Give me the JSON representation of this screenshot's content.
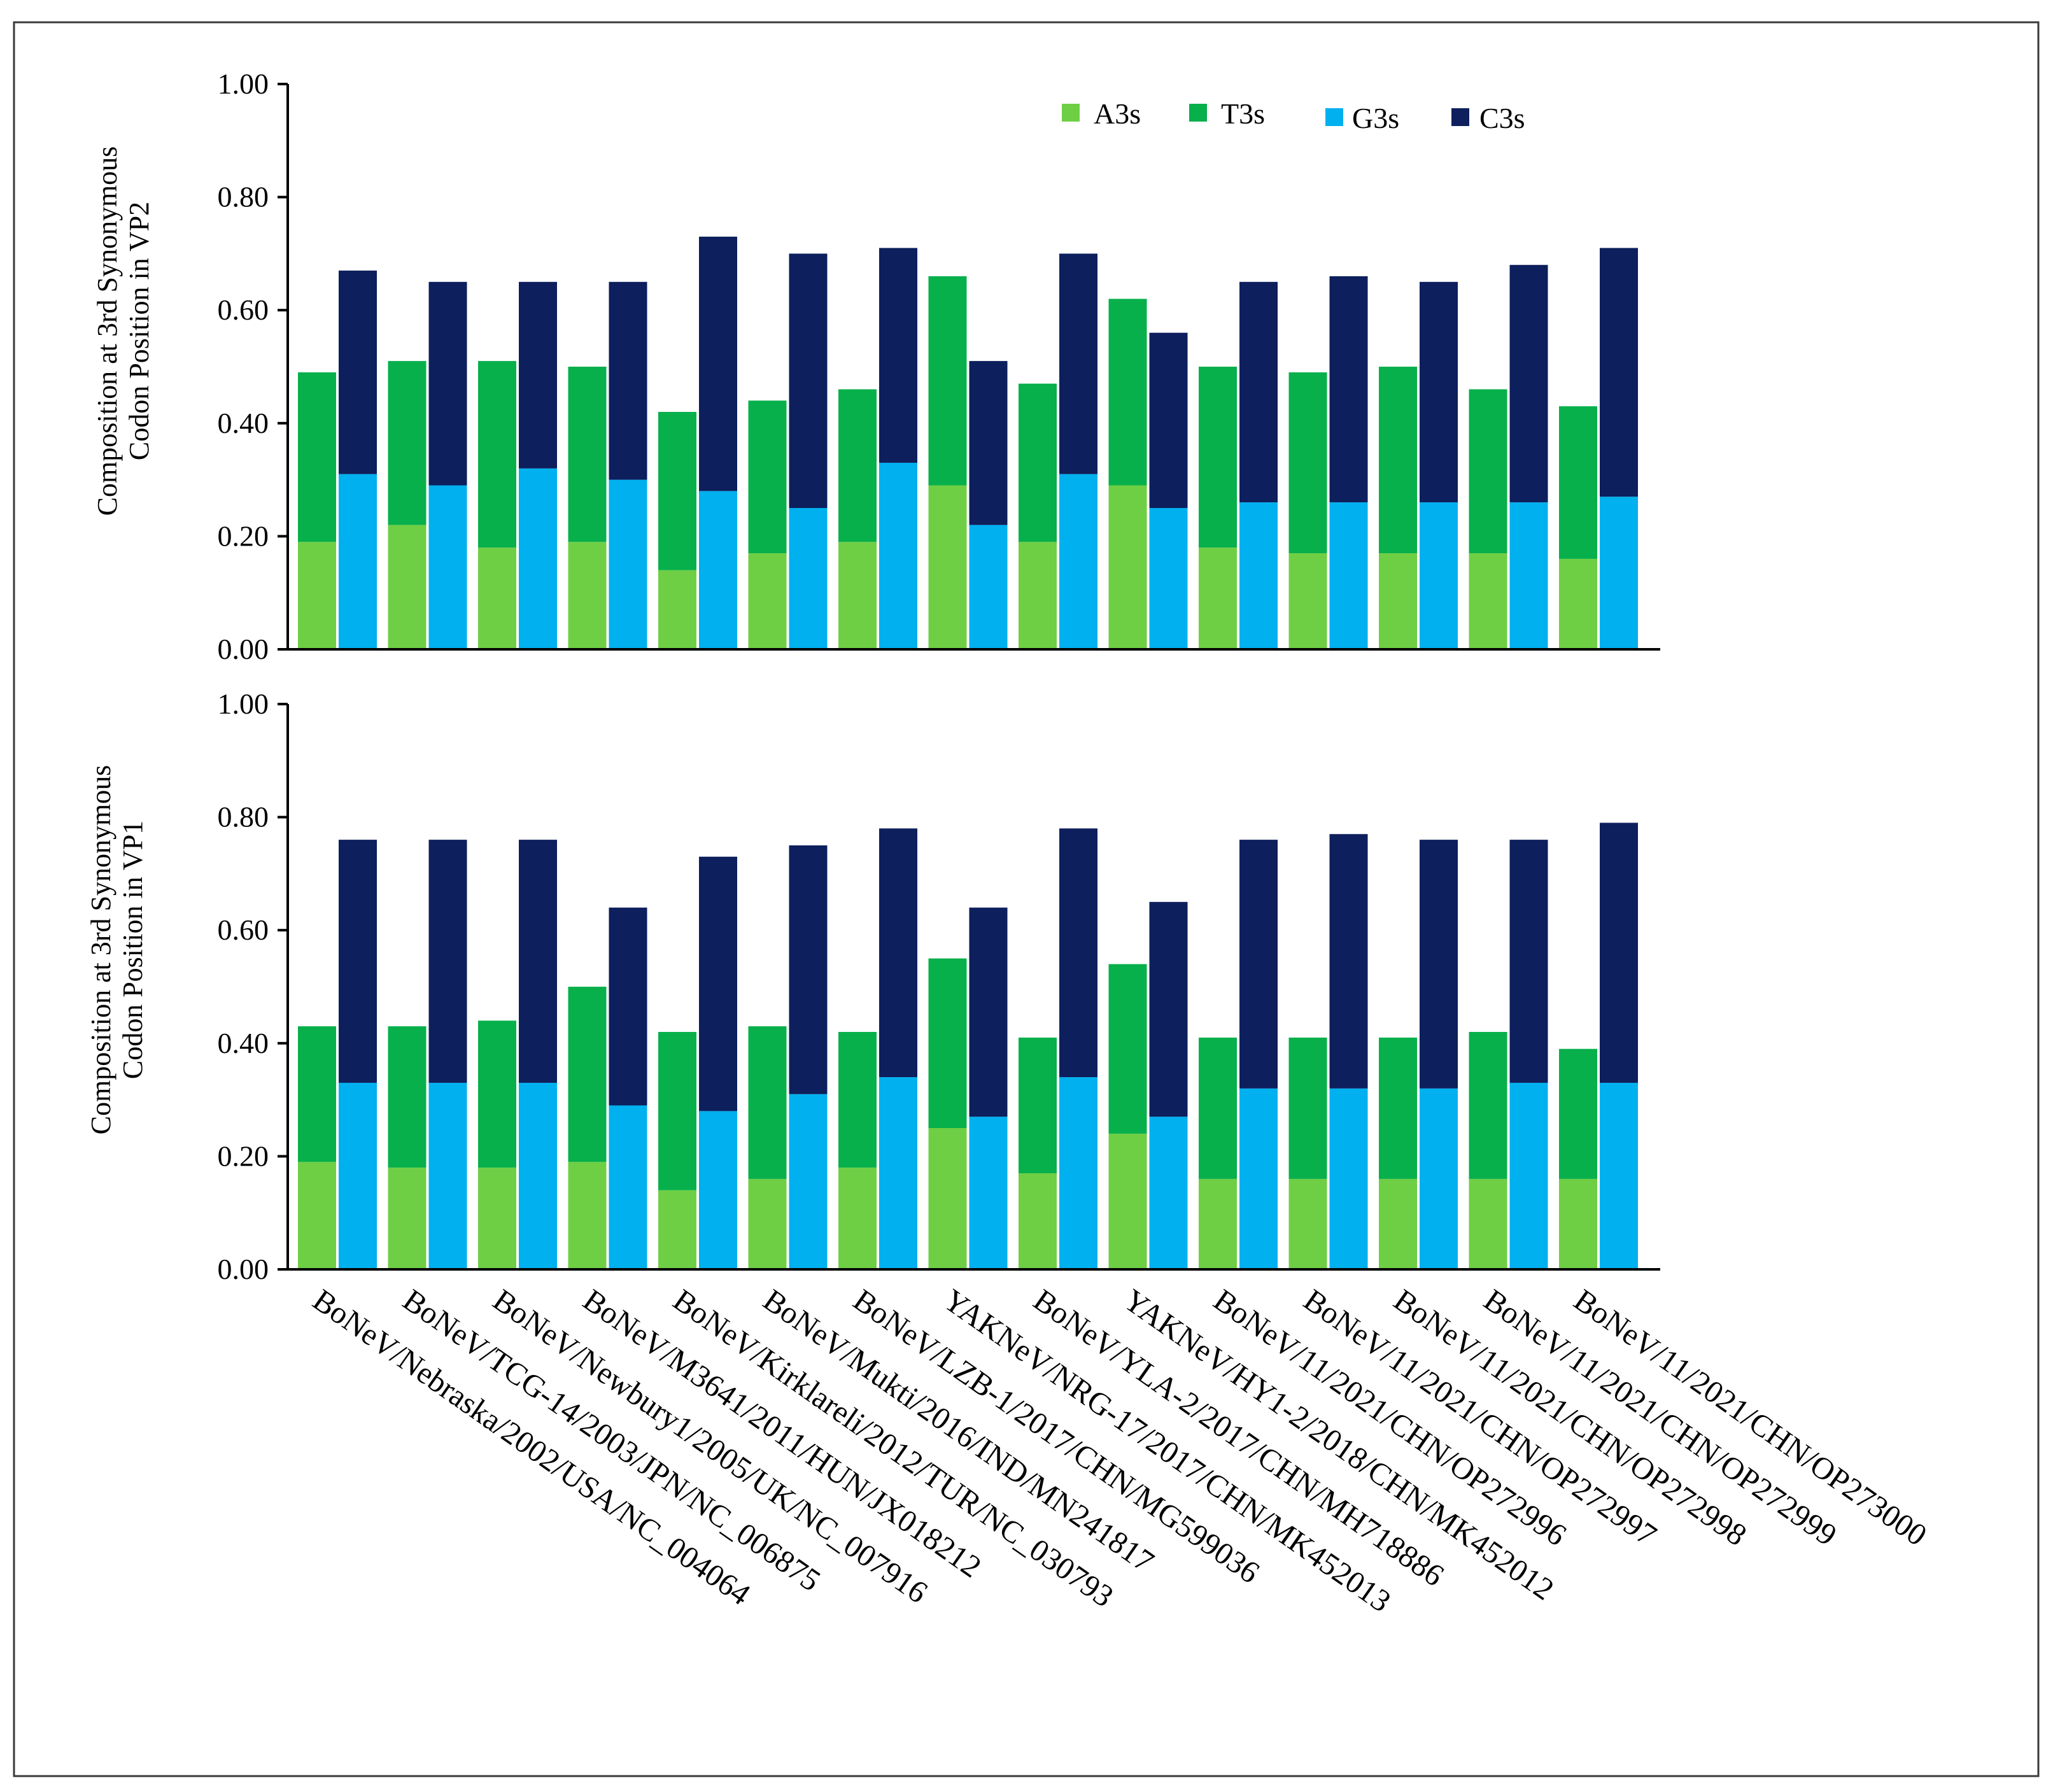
{
  "colors": {
    "A3s": "#6ecf44",
    "T3s": "#07b04b",
    "G3s": "#00b0ef",
    "C3s": "#0d1f5c"
  },
  "chart_data": [
    {
      "type": "bar",
      "stacked_pairs": [
        [
          "A3s",
          "T3s"
        ],
        [
          "G3s",
          "C3s"
        ]
      ],
      "ylabel_lines": [
        "Composition at 3rd Synonymous",
        "Codon Position in VP2"
      ],
      "ylim": [
        0,
        1.0
      ],
      "yticks": [
        "0.00",
        "0.20",
        "0.40",
        "0.60",
        "0.80",
        "1.00"
      ],
      "legend": {
        "position": "top-right",
        "entries": [
          "A3s",
          "T3s",
          "G3s",
          "C3s"
        ]
      },
      "categories": [
        "BoNeV/Nebraska/2002/USA/NC_004064",
        "BoNeV/TCG-14/2003/JPN/NC_006875",
        "BoNeV/Newbury1/2005/UK/NC_007916",
        "BoNeV/M3641/2011/HUN/JX018212",
        "BoNeV/Kirklareli/2012/TUR/NC_030793",
        "BoNeV/Mukti/2016/IND/MN241817",
        "BoNeV/LZB-1/2017/CHN/MG599036",
        "YAKNeV/NRG-17/2017/CHN/MK452013",
        "BoNeV/YLA-2/2017/CHN/MH718886",
        "YAKNeV/HY1-2/2018/CHN/MK452012",
        "BoNeV/11/2021/CHN/OP272996",
        "BoNeV/11/2021/CHN/OP272997",
        "BoNeV/11/2021/CHN/OP272998",
        "BoNeV/11/2021/CHN/OP272999",
        "BoNeV/11/2021/CHN/OP273000"
      ],
      "series": [
        {
          "name": "A3s",
          "values": [
            0.19,
            0.22,
            0.18,
            0.19,
            0.14,
            0.17,
            0.19,
            0.29,
            0.19,
            0.29,
            0.18,
            0.17,
            0.17,
            0.17,
            0.16
          ]
        },
        {
          "name": "T3s",
          "values": [
            0.3,
            0.29,
            0.33,
            0.31,
            0.28,
            0.27,
            0.27,
            0.37,
            0.28,
            0.33,
            0.32,
            0.32,
            0.33,
            0.29,
            0.27
          ]
        },
        {
          "name": "G3s",
          "values": [
            0.31,
            0.29,
            0.32,
            0.3,
            0.28,
            0.25,
            0.33,
            0.22,
            0.31,
            0.25,
            0.26,
            0.26,
            0.26,
            0.26,
            0.27
          ]
        },
        {
          "name": "C3s",
          "values": [
            0.36,
            0.36,
            0.33,
            0.35,
            0.45,
            0.45,
            0.38,
            0.29,
            0.39,
            0.31,
            0.39,
            0.4,
            0.39,
            0.42,
            0.44
          ]
        }
      ]
    },
    {
      "type": "bar",
      "stacked_pairs": [
        [
          "A3s",
          "T3s"
        ],
        [
          "G3s",
          "C3s"
        ]
      ],
      "ylabel_lines": [
        "Composition at 3rd Synonymous",
        "Codon Position in VP1"
      ],
      "ylim": [
        0,
        1.0
      ],
      "yticks": [
        "0.00",
        "0.20",
        "0.40",
        "0.60",
        "0.80",
        "1.00"
      ],
      "categories": [
        "BoNeV/Nebraska/2002/USA/NC_004064",
        "BoNeV/TCG-14/2003/JPN/NC_006875",
        "BoNeV/Newbury1/2005/UK/NC_007916",
        "BoNeV/M3641/2011/HUN/JX018212",
        "BoNeV/Kirklareli/2012/TUR/NC_030793",
        "BoNeV/Mukti/2016/IND/MN241817",
        "BoNeV/LZB-1/2017/CHN/MG599036",
        "YAKNeV/NRG-17/2017/CHN/MK452013",
        "BoNeV/YLA-2/2017/CHN/MH718886",
        "YAKNeV/HY1-2/2018/CHN/MK452012",
        "BoNeV/11/2021/CHN/OP272996",
        "BoNeV/11/2021/CHN/OP272997",
        "BoNeV/11/2021/CHN/OP272998",
        "BoNeV/11/2021/CHN/OP272999",
        "BoNeV/11/2021/CHN/OP273000"
      ],
      "series": [
        {
          "name": "A3s",
          "values": [
            0.19,
            0.18,
            0.18,
            0.19,
            0.14,
            0.16,
            0.18,
            0.25,
            0.17,
            0.24,
            0.16,
            0.16,
            0.16,
            0.16,
            0.16
          ]
        },
        {
          "name": "T3s",
          "values": [
            0.24,
            0.25,
            0.26,
            0.31,
            0.28,
            0.27,
            0.24,
            0.3,
            0.24,
            0.3,
            0.25,
            0.25,
            0.25,
            0.26,
            0.23
          ]
        },
        {
          "name": "G3s",
          "values": [
            0.33,
            0.33,
            0.33,
            0.29,
            0.28,
            0.31,
            0.34,
            0.27,
            0.34,
            0.27,
            0.32,
            0.32,
            0.32,
            0.33,
            0.33
          ]
        },
        {
          "name": "C3s",
          "values": [
            0.43,
            0.43,
            0.43,
            0.35,
            0.45,
            0.44,
            0.44,
            0.37,
            0.44,
            0.38,
            0.44,
            0.45,
            0.44,
            0.43,
            0.46
          ]
        }
      ]
    }
  ]
}
